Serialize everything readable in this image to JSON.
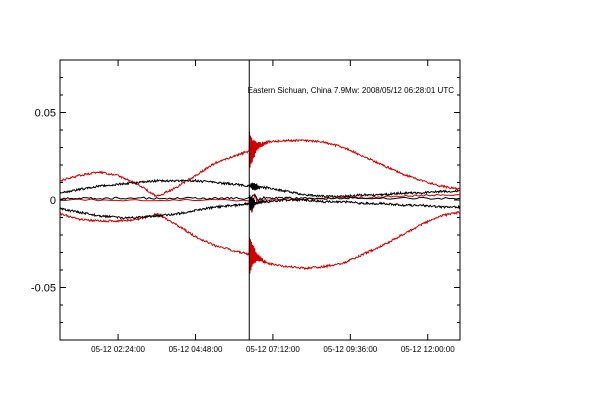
{
  "chart_data": {
    "type": "line",
    "title": "",
    "xlabel": "",
    "ylabel": "",
    "annotation": "Eastern Sichuan, China 7.9Mw: 2008/05/12 06:28:01 UTC",
    "x_range": [
      "2008-05-12T00:36:00",
      "2008-05-12T13:00:00"
    ],
    "ylim": [
      -0.08,
      0.08
    ],
    "yticks": [
      {
        "value": 0.05,
        "label": "0.05"
      },
      {
        "value": 0.0,
        "label": "0"
      },
      {
        "value": -0.05,
        "label": "-0.05"
      }
    ],
    "xticks": [
      {
        "value": "2008-05-12T02:24:00",
        "label": "05-12 02:24:00"
      },
      {
        "value": "2008-05-12T04:48:00",
        "label": "05-12 04:48:00"
      },
      {
        "value": "2008-05-12T07:12:00",
        "label": "05-12 07:12:00"
      },
      {
        "value": "2008-05-12T09:36:00",
        "label": "05-12 09:36:00"
      },
      {
        "value": "2008-05-12T12:00:00",
        "label": "05-12 12:00:00"
      }
    ],
    "event_marker": {
      "time": "2008-05-12T06:28:01"
    },
    "grid": false,
    "series": [
      {
        "color": "#d00000",
        "points": [
          [
            "2008-05-12T00:36:00",
            0.011
          ],
          [
            "2008-05-12T01:12:00",
            0.014
          ],
          [
            "2008-05-12T01:48:00",
            0.016
          ],
          [
            "2008-05-12T02:24:00",
            0.014
          ],
          [
            "2008-05-12T03:00:00",
            0.009
          ],
          [
            "2008-05-12T03:36:00",
            0.002
          ],
          [
            "2008-05-12T04:12:00",
            0.007
          ],
          [
            "2008-05-12T04:48:00",
            0.014
          ],
          [
            "2008-05-12T05:24:00",
            0.021
          ],
          [
            "2008-05-12T06:00:00",
            0.025
          ],
          [
            "2008-05-12T06:28:00",
            0.028
          ],
          [
            "2008-05-12T06:40:00",
            0.03
          ],
          [
            "2008-05-12T07:00:00",
            0.033
          ],
          [
            "2008-05-12T07:36:00",
            0.034
          ],
          [
            "2008-05-12T08:12:00",
            0.034
          ],
          [
            "2008-05-12T08:48:00",
            0.033
          ],
          [
            "2008-05-12T09:24:00",
            0.03
          ],
          [
            "2008-05-12T10:00:00",
            0.025
          ],
          [
            "2008-05-12T10:36:00",
            0.02
          ],
          [
            "2008-05-12T11:12:00",
            0.015
          ],
          [
            "2008-05-12T11:48:00",
            0.011
          ],
          [
            "2008-05-12T12:24:00",
            0.008
          ],
          [
            "2008-05-12T13:00:00",
            0.006
          ]
        ]
      },
      {
        "color": "#d00000",
        "points": [
          [
            "2008-05-12T00:36:00",
            -0.008
          ],
          [
            "2008-05-12T01:12:00",
            -0.011
          ],
          [
            "2008-05-12T01:48:00",
            -0.012
          ],
          [
            "2008-05-12T02:24:00",
            -0.012
          ],
          [
            "2008-05-12T03:00:00",
            -0.011
          ],
          [
            "2008-05-12T03:36:00",
            -0.008
          ],
          [
            "2008-05-12T04:12:00",
            -0.014
          ],
          [
            "2008-05-12T04:48:00",
            -0.021
          ],
          [
            "2008-05-12T05:24:00",
            -0.026
          ],
          [
            "2008-05-12T06:00:00",
            -0.029
          ],
          [
            "2008-05-12T06:28:00",
            -0.031
          ],
          [
            "2008-05-12T06:40:00",
            -0.032
          ],
          [
            "2008-05-12T07:00:00",
            -0.036
          ],
          [
            "2008-05-12T07:36:00",
            -0.038
          ],
          [
            "2008-05-12T08:12:00",
            -0.039
          ],
          [
            "2008-05-12T08:48:00",
            -0.038
          ],
          [
            "2008-05-12T09:24:00",
            -0.036
          ],
          [
            "2008-05-12T10:00:00",
            -0.031
          ],
          [
            "2008-05-12T10:36:00",
            -0.026
          ],
          [
            "2008-05-12T11:12:00",
            -0.02
          ],
          [
            "2008-05-12T11:48:00",
            -0.014
          ],
          [
            "2008-05-12T12:24:00",
            -0.009
          ],
          [
            "2008-05-12T13:00:00",
            -0.007
          ]
        ]
      },
      {
        "color": "#d00000",
        "points": [
          [
            "2008-05-12T00:36:00",
            0.0
          ],
          [
            "2008-05-12T06:28:00",
            0.0
          ],
          [
            "2008-05-12T09:00:00",
            0.001
          ],
          [
            "2008-05-12T11:00:00",
            0.002
          ],
          [
            "2008-05-12T13:00:00",
            0.003
          ]
        ]
      },
      {
        "color": "#000000",
        "points": [
          [
            "2008-05-12T00:36:00",
            0.004
          ],
          [
            "2008-05-12T01:12:00",
            0.006
          ],
          [
            "2008-05-12T01:48:00",
            0.008
          ],
          [
            "2008-05-12T02:24:00",
            0.009
          ],
          [
            "2008-05-12T03:00:00",
            0.01
          ],
          [
            "2008-05-12T03:36:00",
            0.011
          ],
          [
            "2008-05-12T04:12:00",
            0.011
          ],
          [
            "2008-05-12T04:48:00",
            0.011
          ],
          [
            "2008-05-12T05:24:00",
            0.01
          ],
          [
            "2008-05-12T06:00:00",
            0.009
          ],
          [
            "2008-05-12T06:28:00",
            0.008
          ],
          [
            "2008-05-12T07:00:00",
            0.007
          ],
          [
            "2008-05-12T07:36:00",
            0.005
          ],
          [
            "2008-05-12T08:12:00",
            0.003
          ],
          [
            "2008-05-12T08:48:00",
            0.002
          ],
          [
            "2008-05-12T09:24:00",
            0.002
          ],
          [
            "2008-05-12T10:00:00",
            0.003
          ],
          [
            "2008-05-12T10:36:00",
            0.003
          ],
          [
            "2008-05-12T11:12:00",
            0.004
          ],
          [
            "2008-05-12T11:48:00",
            0.004
          ],
          [
            "2008-05-12T12:24:00",
            0.005
          ],
          [
            "2008-05-12T13:00:00",
            0.005
          ]
        ]
      },
      {
        "color": "#000000",
        "points": [
          [
            "2008-05-12T00:36:00",
            -0.005
          ],
          [
            "2008-05-12T01:12:00",
            -0.007
          ],
          [
            "2008-05-12T01:48:00",
            -0.009
          ],
          [
            "2008-05-12T02:24:00",
            -0.01
          ],
          [
            "2008-05-12T03:00:00",
            -0.01
          ],
          [
            "2008-05-12T03:36:00",
            -0.009
          ],
          [
            "2008-05-12T04:12:00",
            -0.008
          ],
          [
            "2008-05-12T04:48:00",
            -0.006
          ],
          [
            "2008-05-12T05:24:00",
            -0.004
          ],
          [
            "2008-05-12T06:00:00",
            -0.003
          ],
          [
            "2008-05-12T06:28:00",
            -0.002
          ],
          [
            "2008-05-12T07:00:00",
            -0.001
          ],
          [
            "2008-05-12T07:36:00",
            0.0
          ],
          [
            "2008-05-12T08:12:00",
            0.0
          ],
          [
            "2008-05-12T08:48:00",
            -0.001
          ],
          [
            "2008-05-12T09:24:00",
            -0.001
          ],
          [
            "2008-05-12T10:00:00",
            -0.002
          ],
          [
            "2008-05-12T10:36:00",
            -0.002
          ],
          [
            "2008-05-12T11:12:00",
            -0.003
          ],
          [
            "2008-05-12T11:48:00",
            -0.003
          ],
          [
            "2008-05-12T12:24:00",
            -0.004
          ],
          [
            "2008-05-12T13:00:00",
            -0.004
          ]
        ]
      },
      {
        "color": "#000000",
        "points": [
          [
            "2008-05-12T00:36:00",
            0.001
          ],
          [
            "2008-05-12T02:24:00",
            0.001
          ],
          [
            "2008-05-12T04:48:00",
            0.001
          ],
          [
            "2008-05-12T06:28:00",
            0.001
          ],
          [
            "2008-05-12T07:36:00",
            0.001
          ],
          [
            "2008-05-12T09:36:00",
            0.001
          ],
          [
            "2008-05-12T13:00:00",
            0.001
          ]
        ]
      }
    ]
  }
}
